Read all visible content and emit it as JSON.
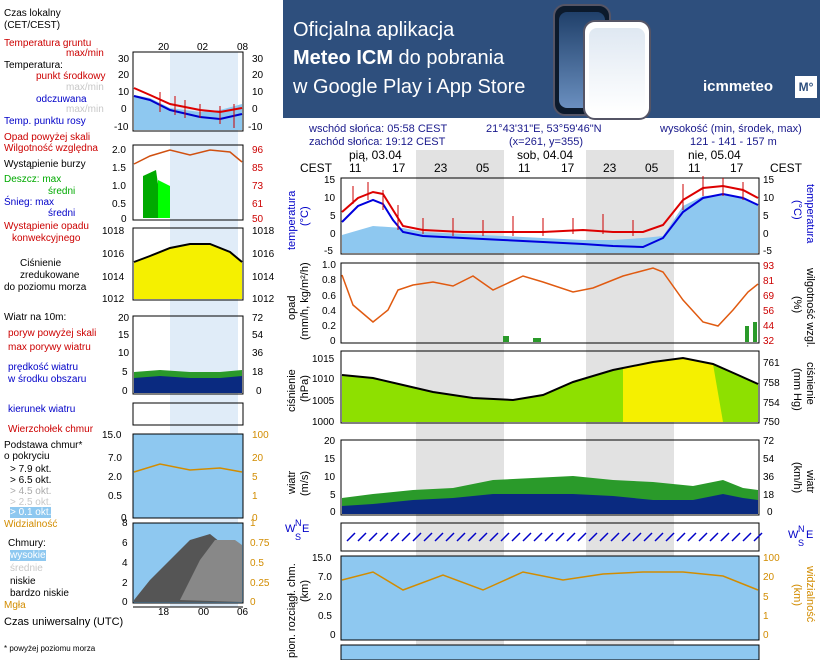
{
  "banner": {
    "line1": "Oficjalna aplikacja",
    "line2_bold": "Meteo ICM",
    "line2_rest": " do pobrania",
    "line3": "w Google Play i App Store",
    "logo_text": "icmmeteo",
    "logo_badge": "M°",
    "colors": {
      "background": "#2e4f7d"
    }
  },
  "legend": {
    "local_time": "Czas lokalny",
    "local_time_zone": "(CET/CEST)",
    "local_ticks": [
      "20",
      "02",
      "08"
    ],
    "soil_temp": "Temperatura gruntu",
    "soil_maxmin": "max/min",
    "temperature": "Temperatura:",
    "mid_point": "punkt środkowy",
    "max_min_1": "max/min",
    "perceived": "odczuwana",
    "max_min_2": "max/min",
    "dew_point": "Temp. punktu rosy",
    "temp_ticks_left": [
      "30",
      "20",
      "10",
      "0",
      "-10"
    ],
    "temp_ticks_right": [
      "30",
      "20",
      "10",
      "0",
      "-10"
    ],
    "precip_above": "Opad powyżej skali",
    "humidity": "Wilgotność względna",
    "storm": "Wystąpienie burzy",
    "rain_max": "Deszcz: max",
    "rain_avg": "średni",
    "snow_max": "Śnieg: max",
    "snow_avg": "średni",
    "precip_convective_1": "Wystąpienie opadu",
    "precip_convective_2": "konwekcyjnego",
    "precip_ticks_left": [
      "2.0",
      "1.5",
      "1.0",
      "0.5",
      "0"
    ],
    "precip_ticks_right": [
      "96",
      "85",
      "73",
      "61",
      "50"
    ],
    "pressure_1": "Ciśnienie",
    "pressure_2": "zredukowane",
    "pressure_3": "do poziomu morza",
    "pressure_ticks": [
      "1018",
      "1016",
      "1014",
      "1012"
    ],
    "wind_at": "Wiatr na 10m:",
    "gusts_above": "poryw powyżej skali",
    "max_gusts": "max porywy wiatru",
    "wind_speed_1": "prędkość wiatru",
    "wind_speed_2": "w środku obszaru",
    "wind_ticks_left": [
      "20",
      "15",
      "10",
      "5",
      "0"
    ],
    "wind_ticks_right": [
      "72",
      "54",
      "36",
      "18",
      "0"
    ],
    "wind_dir": "kierunek wiatru",
    "cloud_top": "Wierzchołek chmur",
    "cloud_base_1": "Podstawa chmur*",
    "cloud_base_2": "o pokryciu",
    "okt": [
      "> 7.9 okt.",
      "> 6.5 okt.",
      "> 4.5 okt.",
      "> 2.5 okt.",
      "> 0.1 okt."
    ],
    "cloud_ticks_left": [
      "15.0",
      "7.0",
      "2.0",
      "0.5",
      "0"
    ],
    "cloud_ticks_right": [
      "100",
      "20",
      "5",
      "1",
      "0"
    ],
    "visibility": "Widzialność",
    "clouds": "Chmury:",
    "high": "wysokie",
    "mid": "średnie",
    "low": "niskie",
    "very_low": "bardzo niskie",
    "fog": "Mgła",
    "clouds_ticks_left": [
      "8",
      "6",
      "4",
      "2",
      "0"
    ],
    "clouds_ticks_right": [
      "1",
      "0.75",
      "0.5",
      "0.25",
      "0"
    ],
    "utc": "Czas uniwersalny (UTC)",
    "utc_ticks": [
      "18",
      "00",
      "06"
    ],
    "footnote": "* powyżej poziomu morza"
  },
  "info": {
    "sunrise": "wschód słońca: 05:58 CEST",
    "sunset": "zachód słońca: 19:12 CEST",
    "coords": "21°43'31\"E, 53°59'46\"N",
    "grid": "(x=261, y=355)",
    "altitude_label": "wysokość (min, środek, max)",
    "altitude_values": "121 - 141 - 157 m"
  },
  "main": {
    "cest_left": "CEST",
    "cest_right": "CEST",
    "days": [
      "pią, 03.04",
      "sob, 04.04",
      "nie, 05.04"
    ],
    "hours": [
      "11",
      "17",
      "23",
      "05",
      "11",
      "17",
      "23",
      "05",
      "11",
      "17"
    ],
    "temp_label_left": "temperatura",
    "temp_unit_left": "(°C)",
    "temp_label_right": "temperatura",
    "temp_unit_right": "(°C)",
    "temp_ticks": [
      "15",
      "10",
      "5",
      "0",
      "-5"
    ],
    "precip_label": "opad",
    "precip_unit": "(mm/h, kg/m²/h)",
    "humidity_label": "wilgotność wzgl.",
    "humidity_unit": "(%)",
    "precip_ticks": [
      "1.0",
      "0.8",
      "0.6",
      "0.4",
      "0.2",
      "0"
    ],
    "humidity_ticks": [
      "93",
      "81",
      "69",
      "56",
      "44",
      "32"
    ],
    "pressure_label": "ciśnienie",
    "pressure_unit": "(hPa)",
    "pressure_label_r": "ciśnienie",
    "pressure_unit_r": "(mm Hg)",
    "pressure_ticks": [
      "1015",
      "1010",
      "1005",
      "1000"
    ],
    "pressure_ticks_r": [
      "761",
      "758",
      "754",
      "750"
    ],
    "wind_label": "wiatr",
    "wind_unit": "(m/s)",
    "wind_label_r": "wiatr",
    "wind_unit_r": "(km/h)",
    "wind_ticks": [
      "20",
      "15",
      "10",
      "5",
      "0"
    ],
    "wind_ticks_r": [
      "72",
      "54",
      "36",
      "18",
      "0"
    ],
    "compass_w": "W",
    "compass_n": "N",
    "compass_s": "S",
    "compass_e": "E",
    "cloud_label": "pion. rozciągł. chm.",
    "cloud_unit": "(km)",
    "vis_label": "widzialność",
    "vis_unit": "(km)",
    "cloud_ticks": [
      "15.0",
      "7.0",
      "2.0",
      "0.5",
      "0"
    ],
    "vis_ticks": [
      "100",
      "20",
      "5",
      "1",
      "0"
    ]
  },
  "colors": {
    "temp_red": "#dd0000",
    "temp_blue": "#0000dd",
    "sky_blue": "#8ec8f0",
    "pressure_yellow": "#f5f000",
    "pressure_green": "#8ee000",
    "humidity_orange": "#e05a10",
    "wind_green": "#2a9a2a",
    "wind_navy": "#0a2a80",
    "night_gray": "#e2e2e2"
  }
}
